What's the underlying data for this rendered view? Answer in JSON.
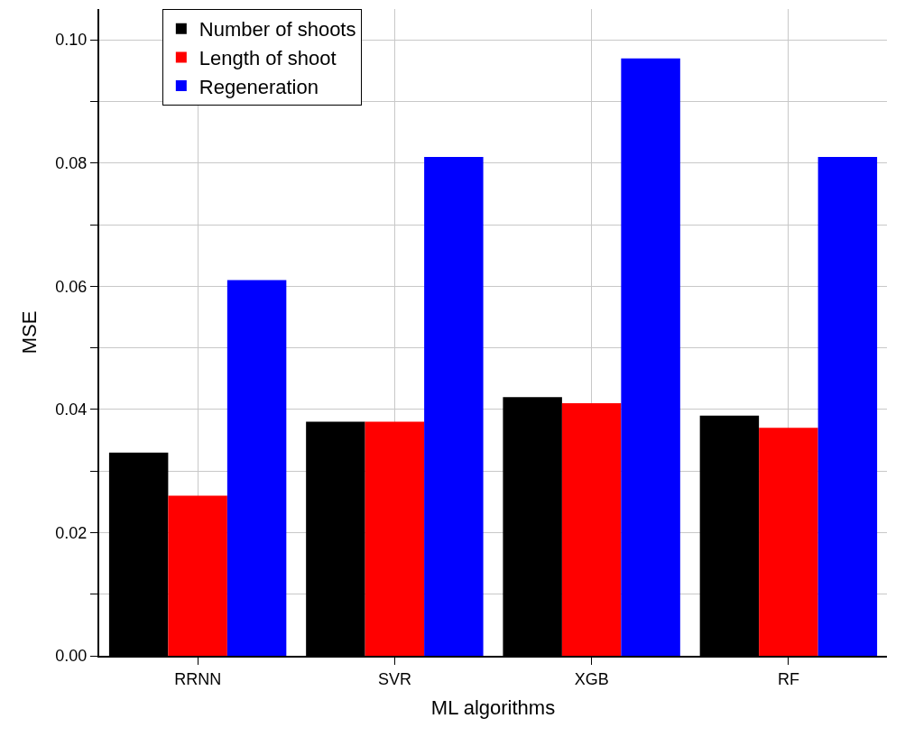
{
  "chart_data": {
    "type": "bar",
    "xlabel": "ML algorithms",
    "ylabel": "MSE",
    "categories": [
      "RRNN",
      "SVR",
      "XGB",
      "RF"
    ],
    "series": [
      {
        "name": "Number of shoots",
        "color": "#000000",
        "values": [
          0.033,
          0.038,
          0.042,
          0.039
        ]
      },
      {
        "name": "Length of shoot",
        "color": "#ff0000",
        "values": [
          0.026,
          0.038,
          0.041,
          0.037
        ]
      },
      {
        "name": "Regeneration",
        "color": "#0000ff",
        "values": [
          0.061,
          0.081,
          0.097,
          0.081
        ]
      }
    ],
    "ylim": [
      0,
      0.105
    ],
    "yticks": [
      {
        "value": 0,
        "label": "0.00"
      },
      {
        "value": 0.01,
        "label": null
      },
      {
        "value": 0.02,
        "label": "0.02"
      },
      {
        "value": 0.03,
        "label": null
      },
      {
        "value": 0.04,
        "label": "0.04"
      },
      {
        "value": 0.05,
        "label": null
      },
      {
        "value": 0.06,
        "label": "0.06"
      },
      {
        "value": 0.07,
        "label": null
      },
      {
        "value": 0.08,
        "label": "0.08"
      },
      {
        "value": 0.09,
        "label": null
      },
      {
        "value": 0.1,
        "label": "0.10"
      }
    ],
    "grid": true,
    "legend": "top left"
  }
}
